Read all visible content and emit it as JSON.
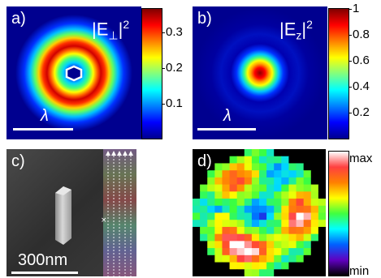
{
  "panels": {
    "a": {
      "label": "a)",
      "title_base": "|E",
      "title_sub": "⊥",
      "title_sup": "2",
      "scale_symbol": "λ",
      "colorbar_ticks": [
        "0.3",
        "0.2",
        "0.1"
      ]
    },
    "b": {
      "label": "b)",
      "title_base": "|E",
      "title_sub": "z",
      "title_sup": "2",
      "scale_symbol": "λ",
      "colorbar_ticks": [
        "1",
        "0.8",
        "0.6",
        "0.4",
        "0.2"
      ]
    },
    "c": {
      "label": "c)",
      "scale_text": "300nm"
    },
    "d": {
      "label": "d)",
      "colorbar_max": "max",
      "colorbar_min": "min"
    }
  }
}
